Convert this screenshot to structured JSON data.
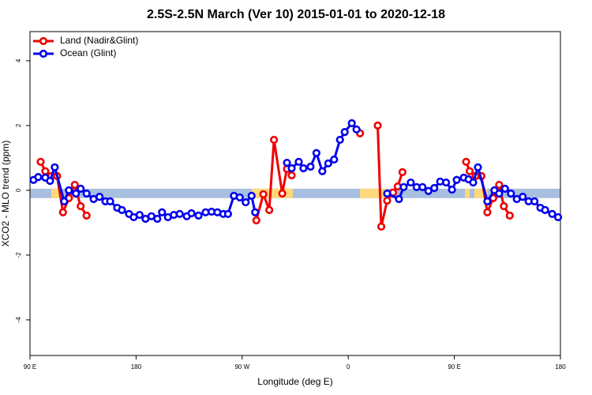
{
  "chart_data": {
    "type": "line",
    "title": "2.5S-2.5N March (Ver 10)   2015-01-01 to 2020-12-18",
    "x_label": "Longitude (deg E)",
    "y_label": "XCO2 - MLO trend (ppm)",
    "xlim": [
      90,
      540
    ],
    "ylim": [
      -5.1,
      4.9
    ],
    "xticks": [
      {
        "value": 90,
        "label": "90 E"
      },
      {
        "value": 180,
        "label": "180"
      },
      {
        "value": 270,
        "label": "90 W"
      },
      {
        "value": 360,
        "label": "0"
      },
      {
        "value": 450,
        "label": "90 E"
      },
      {
        "value": 540,
        "label": "180"
      }
    ],
    "yticks": [
      -4,
      -2,
      0,
      2,
      4
    ],
    "legend": "top-left",
    "band": {
      "ylim": [
        -0.24,
        0.05
      ],
      "color": "#a8bfe0"
    },
    "land_spans": {
      "color": "#ffd87a",
      "spans": [
        [
          108,
          116
        ],
        [
          126,
          130
        ],
        [
          278,
          313
        ],
        [
          370,
          393
        ],
        [
          459,
          463
        ],
        [
          467,
          478
        ]
      ]
    },
    "series": [
      {
        "name": "Land (Nadir&Glint)",
        "color": "#ee0000",
        "x": [
          99,
          103,
          108,
          113,
          118,
          123,
          128,
          133,
          138,
          null,
          282,
          288,
          293,
          297,
          304,
          308,
          312,
          null,
          370,
          null,
          385,
          388,
          393,
          398,
          402,
          406,
          null,
          460,
          463,
          468,
          473,
          478,
          483,
          488,
          492,
          497
        ],
        "values": [
          0.88,
          0.59,
          0.44,
          0.44,
          -0.68,
          -0.24,
          0.17,
          -0.49,
          -0.78,
          null,
          -0.93,
          -0.12,
          -0.61,
          1.56,
          -0.1,
          0.66,
          0.46,
          null,
          1.76,
          null,
          2.0,
          -1.12,
          -0.32,
          -0.07,
          0.12,
          0.56,
          null,
          0.88,
          0.59,
          0.44,
          0.44,
          -0.68,
          -0.24,
          0.17,
          -0.49,
          -0.78
        ]
      },
      {
        "name": "Ocean (Glint)",
        "color": "#0000ee",
        "x": [
          93,
          97,
          103,
          107,
          111,
          119,
          123,
          129,
          133,
          138,
          144,
          149,
          154,
          158,
          164,
          168,
          174,
          178,
          183,
          188,
          193,
          198,
          202,
          207,
          212,
          217,
          223,
          227,
          233,
          239,
          244,
          249,
          254,
          258,
          263,
          268,
          273,
          278,
          281,
          null,
          308,
          312,
          318,
          322,
          328,
          333,
          338,
          343,
          348,
          353,
          357,
          363,
          367,
          null,
          393,
          403,
          407,
          413,
          418,
          423,
          428,
          433,
          438,
          443,
          448,
          452,
          458,
          462,
          466,
          470,
          478,
          484,
          488,
          493,
          498,
          503,
          508,
          513,
          518,
          523,
          527,
          533,
          538
        ],
        "values": [
          0.32,
          0.41,
          0.39,
          0.29,
          0.71,
          -0.34,
          0,
          -0.1,
          0.05,
          -0.1,
          -0.27,
          -0.2,
          -0.34,
          -0.34,
          -0.54,
          -0.61,
          -0.73,
          -0.83,
          -0.76,
          -0.88,
          -0.8,
          -0.88,
          -0.68,
          -0.83,
          -0.76,
          -0.73,
          -0.8,
          -0.71,
          -0.78,
          -0.68,
          -0.66,
          -0.68,
          -0.73,
          -0.73,
          -0.17,
          -0.22,
          -0.37,
          -0.17,
          -0.68,
          null,
          0.85,
          0.68,
          0.88,
          0.68,
          0.73,
          1.15,
          0.59,
          0.83,
          0.95,
          1.56,
          1.8,
          2.07,
          1.88,
          null,
          -0.1,
          -0.27,
          0.1,
          0.24,
          0.1,
          0.1,
          -0.02,
          0.07,
          0.27,
          0.24,
          0.02,
          0.32,
          0.39,
          0.34,
          0.24,
          0.71,
          -0.34,
          0,
          -0.1,
          0.05,
          -0.1,
          -0.27,
          -0.2,
          -0.34,
          -0.34,
          -0.54,
          -0.61,
          -0.73,
          -0.83
        ]
      }
    ]
  }
}
